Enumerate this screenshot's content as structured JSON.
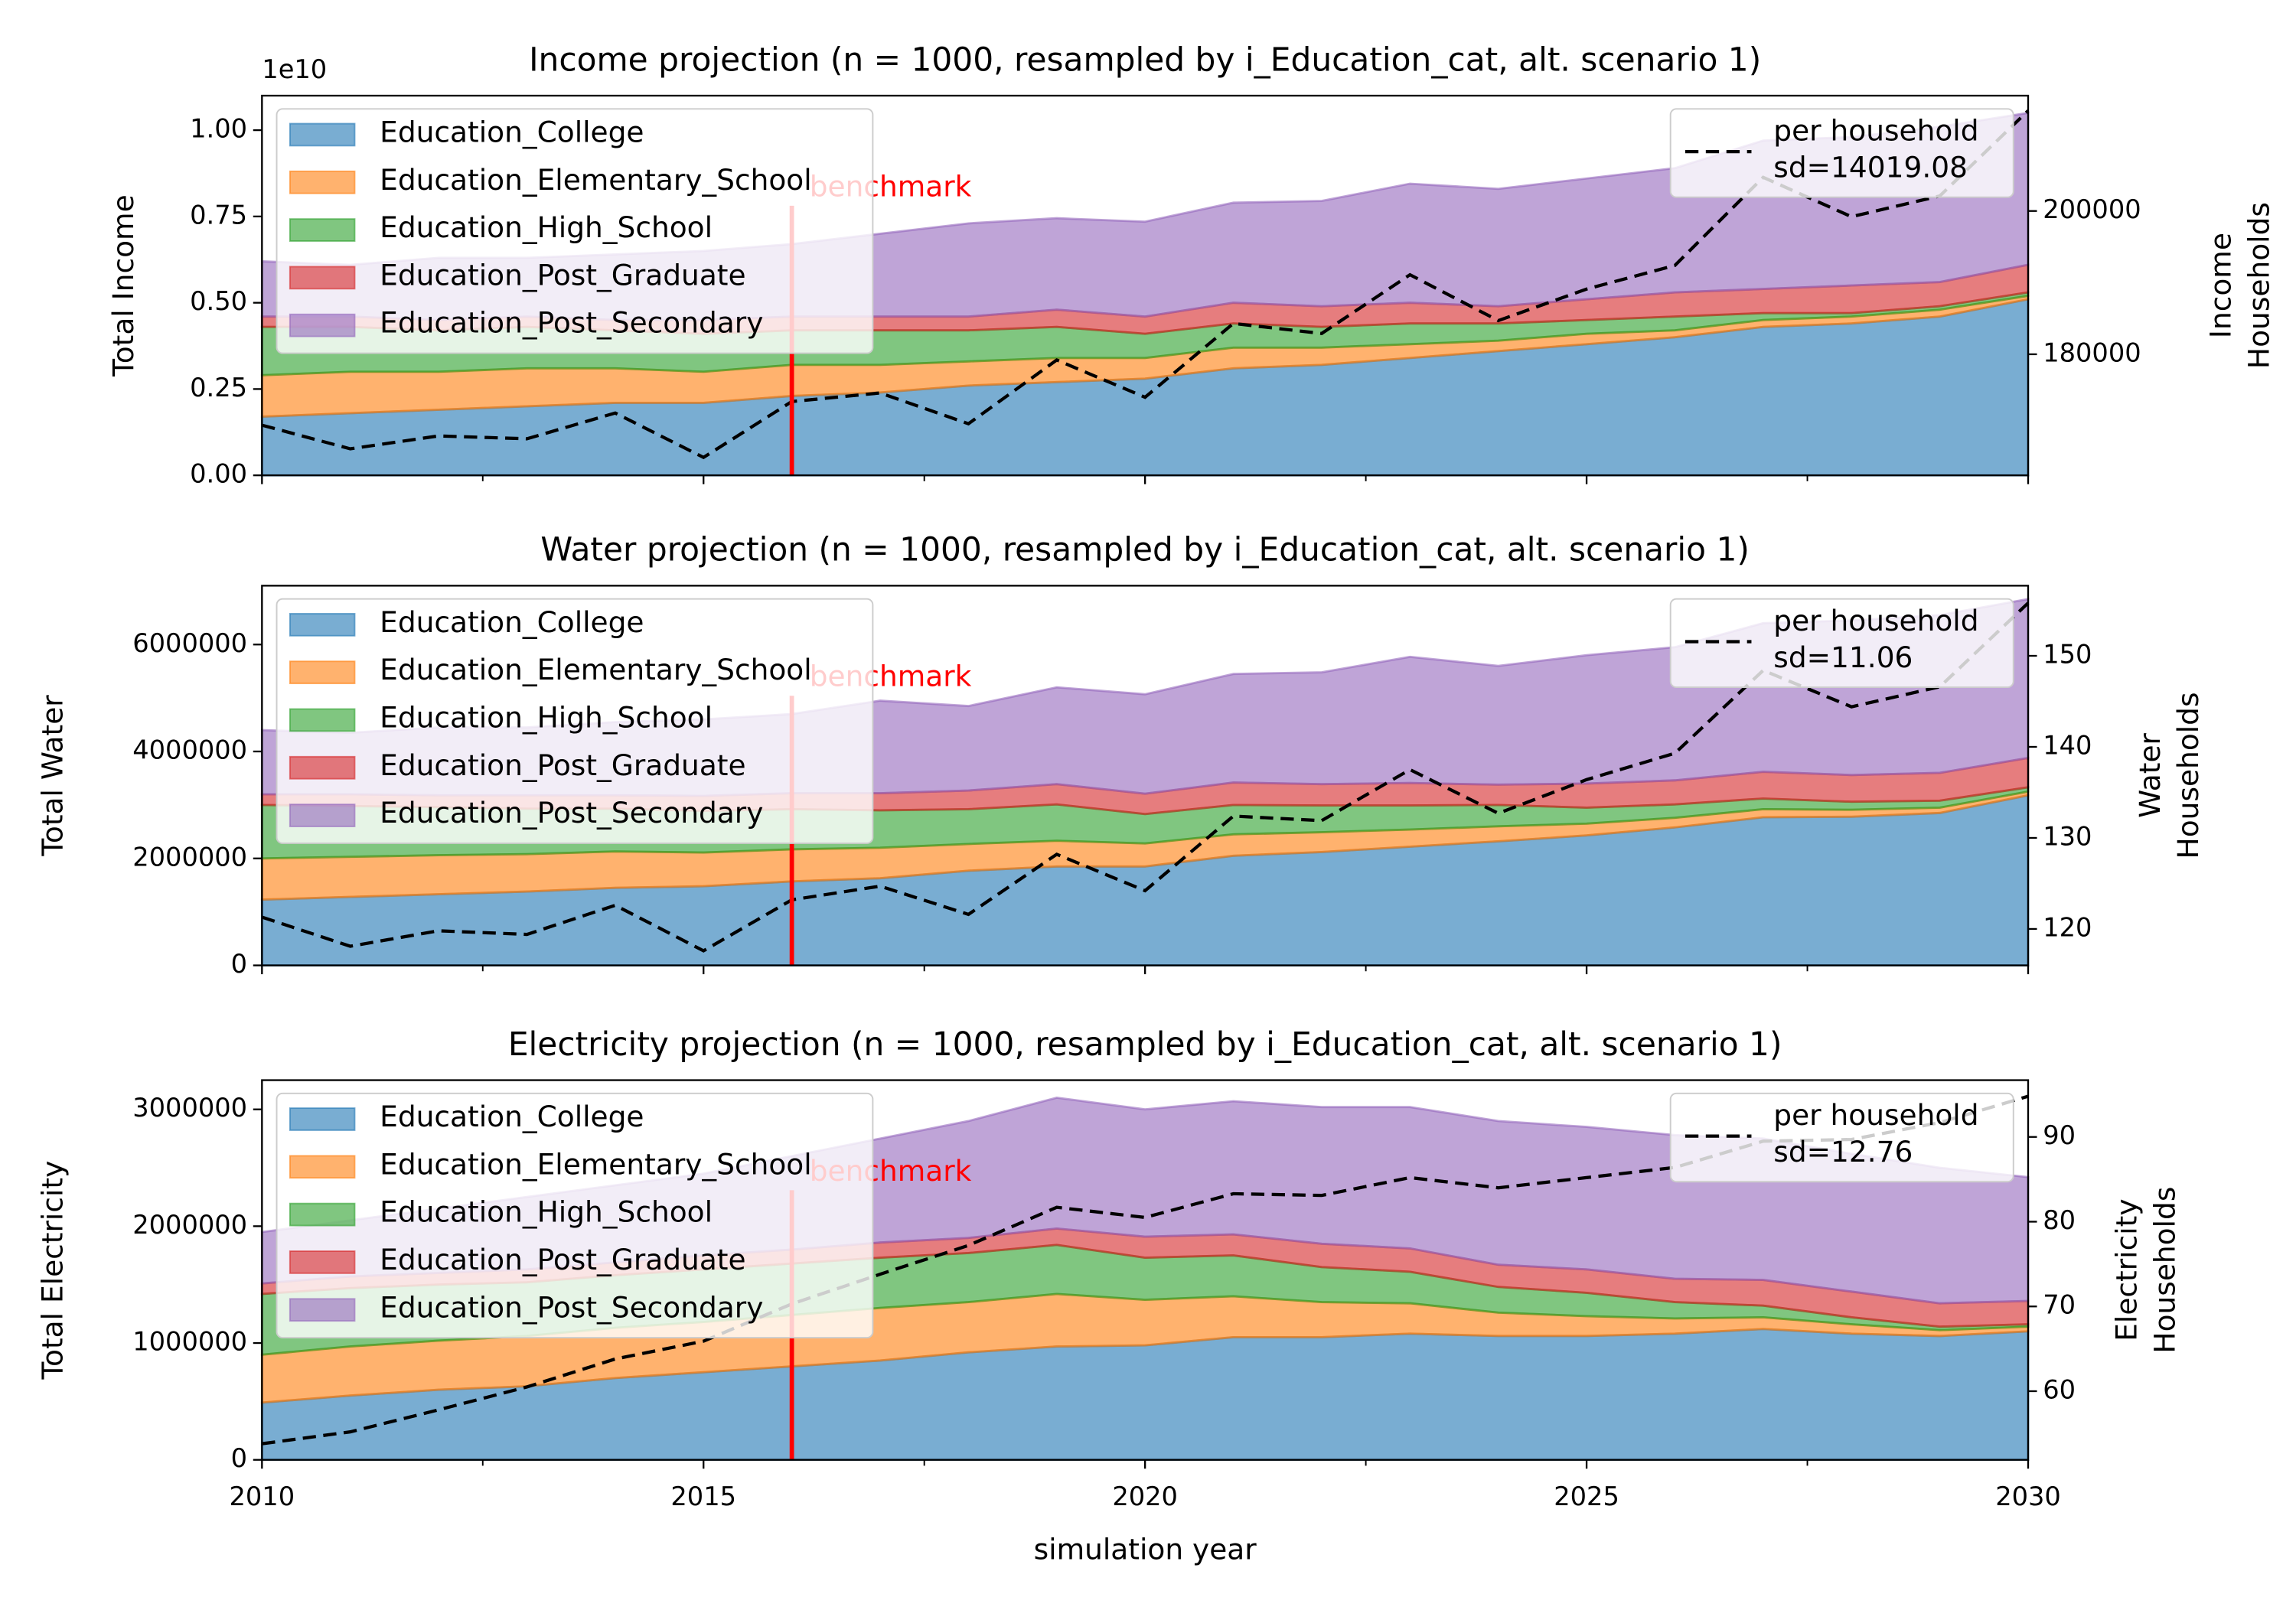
{
  "chart_data": [
    {
      "type": "stacked-area",
      "title": "Income projection (n = 1000, resampled by i_Education_cat, alt. scenario 1)",
      "ylabel": "Total Income",
      "y_offset_label": "1e10",
      "y2label": [
        "Income",
        "Households"
      ],
      "x": [
        2010,
        2011,
        2012,
        2013,
        2014,
        2015,
        2016,
        2017,
        2018,
        2019,
        2020,
        2021,
        2022,
        2023,
        2024,
        2025,
        2026,
        2027,
        2028,
        2029,
        2030
      ],
      "xlim": [
        2010,
        2030
      ],
      "xticks": [
        2010,
        2015,
        2020,
        2025,
        2030
      ],
      "xminor_ticks": [
        2012.5,
        2017.5,
        2022.5,
        2027.5
      ],
      "ylim": [
        0,
        1.1
      ],
      "yticks": [
        {
          "value": 0,
          "label": "0.00"
        },
        {
          "value": 0.25,
          "label": "0.25"
        },
        {
          "value": 0.5,
          "label": "0.50"
        },
        {
          "value": 0.75,
          "label": "0.75"
        },
        {
          "value": 1,
          "label": "1.00"
        }
      ],
      "y2lim": [
        163100,
        216100
      ],
      "y2ticks": [
        180000,
        200000
      ],
      "alpha": 0.6,
      "legend_loc": "upper left",
      "legend2_loc": "upper right",
      "legend_note": "sd=14019.08",
      "benchmark": {
        "x": 2016,
        "label": "benchmark",
        "color": "#ff0000"
      },
      "series": [
        {
          "name": "Education_College",
          "color": "#1f77b4",
          "values": [
            0.17,
            0.18,
            0.19,
            0.2,
            0.21,
            0.21,
            0.23,
            0.24,
            0.26,
            0.27,
            0.28,
            0.31,
            0.32,
            0.34,
            0.36,
            0.38,
            0.4,
            0.43,
            0.44,
            0.46,
            0.51
          ]
        },
        {
          "name": "Education_Elementary_School",
          "color": "#ff7f0e",
          "values": [
            0.12,
            0.12,
            0.11,
            0.11,
            0.1,
            0.09,
            0.09,
            0.08,
            0.07,
            0.07,
            0.06,
            0.06,
            0.05,
            0.04,
            0.03,
            0.03,
            0.02,
            0.02,
            0.02,
            0.02,
            0.01
          ]
        },
        {
          "name": "Education_High_School",
          "color": "#2ca02c",
          "values": [
            0.14,
            0.13,
            0.12,
            0.12,
            0.11,
            0.11,
            0.1,
            0.1,
            0.09,
            0.09,
            0.07,
            0.07,
            0.06,
            0.06,
            0.05,
            0.04,
            0.04,
            0.02,
            0.01,
            0.01,
            0.01
          ]
        },
        {
          "name": "Education_Post_Graduate",
          "color": "#d62728",
          "values": [
            0.03,
            0.03,
            0.03,
            0.03,
            0.03,
            0.04,
            0.04,
            0.04,
            0.04,
            0.05,
            0.05,
            0.06,
            0.06,
            0.06,
            0.05,
            0.06,
            0.07,
            0.07,
            0.08,
            0.07,
            0.08
          ]
        },
        {
          "name": "Education_Post_Secondary",
          "color": "#9467bd",
          "values": [
            0.16,
            0.15,
            0.18,
            0.17,
            0.19,
            0.2,
            0.21,
            0.24,
            0.27,
            0.265,
            0.275,
            0.29,
            0.305,
            0.345,
            0.34,
            0.35,
            0.36,
            0.43,
            0.43,
            0.45,
            0.44
          ]
        },
        {
          "name": "per household",
          "color": "#000000",
          "axis": "y2",
          "dashed": true,
          "values": [
            170100,
            166800,
            168600,
            168200,
            171800,
            165600,
            173400,
            174600,
            170300,
            179200,
            174000,
            184300,
            182900,
            191100,
            184700,
            189100,
            192400,
            204700,
            199200,
            202100,
            214000
          ]
        }
      ]
    },
    {
      "type": "stacked-area",
      "title": "Water projection (n = 1000, resampled by i_Education_cat, alt. scenario 1)",
      "ylabel": "Total Water",
      "y2label": [
        "Water",
        "Households"
      ],
      "x": [
        2010,
        2011,
        2012,
        2013,
        2014,
        2015,
        2016,
        2017,
        2018,
        2019,
        2020,
        2021,
        2022,
        2023,
        2024,
        2025,
        2026,
        2027,
        2028,
        2029,
        2030
      ],
      "xlim": [
        2010,
        2030
      ],
      "xticks": [
        2010,
        2015,
        2020,
        2025,
        2030
      ],
      "xminor_ticks": [
        2012.5,
        2017.5,
        2022.5,
        2027.5
      ],
      "ylim": [
        0,
        7100000
      ],
      "yticks": [
        0,
        2000000,
        4000000,
        6000000
      ],
      "y2lim": [
        116,
        157.7
      ],
      "y2ticks": [
        120,
        130,
        140,
        150
      ],
      "alpha": 0.6,
      "legend_loc": "upper left",
      "legend2_loc": "upper right",
      "legend_note": "sd=11.06",
      "benchmark": {
        "x": 2016,
        "label": "benchmark",
        "color": "#ff0000"
      },
      "series": [
        {
          "name": "Education_College",
          "color": "#1f77b4",
          "values": [
            1230000,
            1280000,
            1330000,
            1380000,
            1450000,
            1480000,
            1570000,
            1630000,
            1770000,
            1850000,
            1850000,
            2050000,
            2120000,
            2220000,
            2320000,
            2430000,
            2580000,
            2770000,
            2780000,
            2850000,
            3180000
          ]
        },
        {
          "name": "Education_Elementary_School",
          "color": "#ff7f0e",
          "values": [
            770000,
            750000,
            730000,
            700000,
            680000,
            630000,
            600000,
            570000,
            500000,
            480000,
            430000,
            400000,
            370000,
            320000,
            280000,
            220000,
            180000,
            150000,
            130000,
            100000,
            70000
          ]
        },
        {
          "name": "Education_High_School",
          "color": "#2ca02c",
          "values": [
            1000000,
            950000,
            900000,
            850000,
            800000,
            780000,
            750000,
            700000,
            650000,
            680000,
            550000,
            550000,
            500000,
            450000,
            400000,
            300000,
            250000,
            200000,
            150000,
            130000,
            80000
          ]
        },
        {
          "name": "Education_Post_Graduate",
          "color": "#d62728",
          "values": [
            200000,
            220000,
            220000,
            250000,
            250000,
            280000,
            300000,
            320000,
            350000,
            380000,
            380000,
            420000,
            400000,
            420000,
            380000,
            450000,
            450000,
            500000,
            500000,
            520000,
            550000
          ]
        },
        {
          "name": "Education_Post_Secondary",
          "color": "#9467bd",
          "values": [
            1200000,
            1150000,
            1270000,
            1270000,
            1370000,
            1430000,
            1480000,
            1730000,
            1580000,
            1810000,
            1860000,
            2030000,
            2090000,
            2360000,
            2220000,
            2400000,
            2490000,
            2780000,
            2890000,
            2950000,
            2970000
          ]
        },
        {
          "name": "per household",
          "color": "#000000",
          "axis": "y2",
          "dashed": true,
          "values": [
            121.3,
            118.1,
            119.8,
            119.4,
            122.6,
            117.6,
            123.2,
            124.7,
            121.6,
            128.2,
            124.2,
            132.4,
            131.9,
            137.5,
            132.7,
            136.4,
            139.3,
            148.4,
            144.4,
            146.6,
            155.8
          ]
        }
      ]
    },
    {
      "type": "stacked-area",
      "title": "Electricity projection (n = 1000, resampled by i_Education_cat, alt. scenario 1)",
      "ylabel": "Total Electricity",
      "y2label": [
        "Electricity",
        "Households"
      ],
      "xlabel": "simulation year",
      "x": [
        2010,
        2011,
        2012,
        2013,
        2014,
        2015,
        2016,
        2017,
        2018,
        2019,
        2020,
        2021,
        2022,
        2023,
        2024,
        2025,
        2026,
        2027,
        2028,
        2029,
        2030
      ],
      "xlim": [
        2010,
        2030
      ],
      "xticks": [
        2010,
        2015,
        2020,
        2025,
        2030
      ],
      "xminor_ticks": [
        2012.5,
        2017.5,
        2022.5,
        2027.5
      ],
      "ylim": [
        0,
        3250000
      ],
      "yticks": [
        0,
        1000000,
        2000000,
        3000000
      ],
      "y2lim": [
        51.9,
        96.7
      ],
      "y2ticks": [
        60,
        70,
        80,
        90
      ],
      "alpha": 0.6,
      "legend_loc": "upper left",
      "legend2_loc": "upper right",
      "legend_note": "sd=12.76",
      "benchmark": {
        "x": 2016,
        "label": "benchmark",
        "color": "#ff0000"
      },
      "series": [
        {
          "name": "Education_College",
          "color": "#1f77b4",
          "values": [
            490000,
            550000,
            600000,
            630000,
            700000,
            750000,
            800000,
            850000,
            920000,
            970000,
            980000,
            1050000,
            1050000,
            1080000,
            1060000,
            1060000,
            1080000,
            1120000,
            1080000,
            1060000,
            1100000
          ]
        },
        {
          "name": "Education_Elementary_School",
          "color": "#ff7f0e",
          "values": [
            410000,
            420000,
            420000,
            430000,
            430000,
            430000,
            440000,
            450000,
            430000,
            450000,
            390000,
            350000,
            300000,
            260000,
            200000,
            170000,
            130000,
            100000,
            80000,
            50000,
            40000
          ]
        },
        {
          "name": "Education_High_School",
          "color": "#2ca02c",
          "values": [
            520000,
            500000,
            480000,
            460000,
            450000,
            450000,
            440000,
            430000,
            420000,
            420000,
            360000,
            350000,
            300000,
            270000,
            220000,
            200000,
            140000,
            100000,
            60000,
            30000,
            20000
          ]
        },
        {
          "name": "Education_Post_Graduate",
          "color": "#d62728",
          "values": [
            90000,
            100000,
            100000,
            110000,
            110000,
            120000,
            120000,
            130000,
            130000,
            140000,
            180000,
            180000,
            200000,
            200000,
            190000,
            200000,
            200000,
            220000,
            220000,
            200000,
            200000
          ]
        },
        {
          "name": "Education_Post_Secondary",
          "color": "#9467bd",
          "values": [
            440000,
            480000,
            550000,
            620000,
            660000,
            700000,
            800000,
            890000,
            1000000,
            1120000,
            1090000,
            1140000,
            1170000,
            1210000,
            1230000,
            1220000,
            1230000,
            1210000,
            1180000,
            1160000,
            1060000
          ]
        },
        {
          "name": "per household",
          "color": "#000000",
          "axis": "y2",
          "dashed": true,
          "values": [
            53.8,
            55.2,
            57.8,
            60.5,
            63.8,
            65.9,
            70.3,
            73.8,
            77.2,
            81.7,
            80.5,
            83.3,
            83.1,
            85.2,
            84.0,
            85.2,
            86.4,
            89.5,
            89.7,
            91.7,
            94.8
          ]
        }
      ]
    }
  ]
}
